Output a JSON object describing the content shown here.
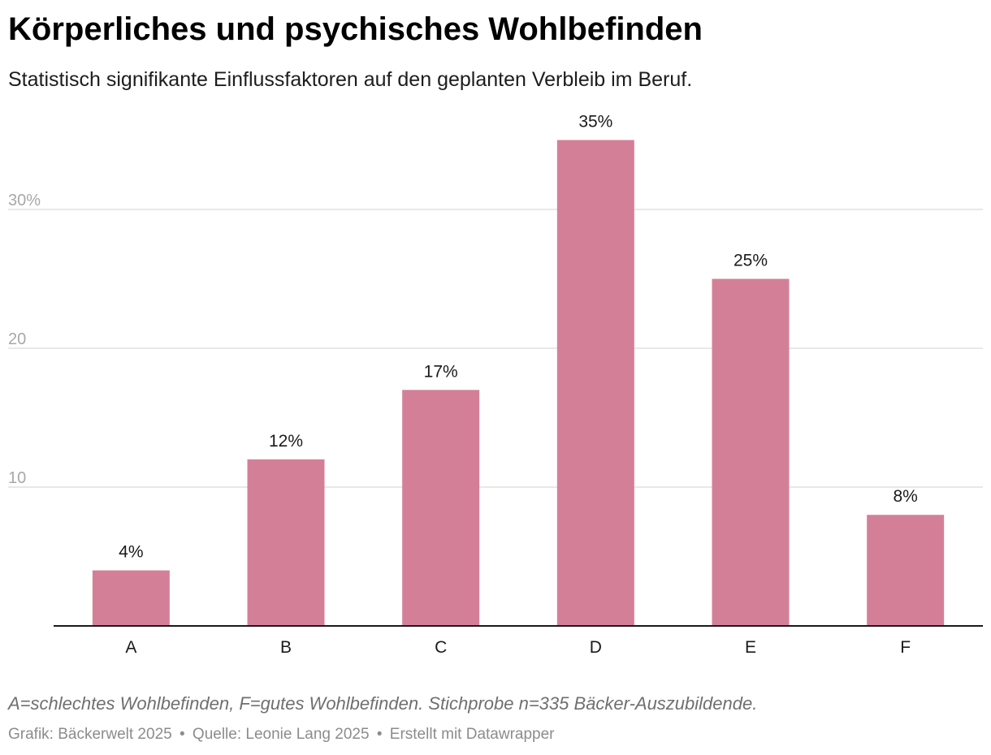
{
  "header": {
    "title": "Körperliches und psychisches Wohlbefinden",
    "subtitle": "Statistisch signifikante Einflussfaktoren auf den geplanten Verbleib im Beruf."
  },
  "chart_data": {
    "type": "bar",
    "categories": [
      "A",
      "B",
      "C",
      "D",
      "E",
      "F"
    ],
    "values": [
      4,
      12,
      17,
      35,
      25,
      8
    ],
    "value_labels": [
      "4%",
      "12%",
      "17%",
      "35%",
      "25%",
      "8%"
    ],
    "yticks": [
      {
        "value": 10,
        "label": "10"
      },
      {
        "value": 20,
        "label": "20"
      },
      {
        "value": 30,
        "label": "30%"
      }
    ],
    "ylim": [
      0,
      38
    ],
    "grid": true,
    "bar_color": "#d47f98",
    "grid_color": "#e1e1e1",
    "tick_label_color": "#a8a8a8"
  },
  "footer": {
    "note": "A=schlechtes Wohlbefinden, F=gutes Wohlbefinden. Stichprobe n=335 Bäcker-Auszubildende.",
    "credit_graphic": "Grafik: Bäckerwelt 2025",
    "credit_source": "Quelle: Leonie Lang 2025",
    "credit_tool": "Erstellt mit Datawrapper",
    "separator": "•"
  }
}
